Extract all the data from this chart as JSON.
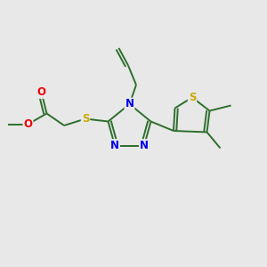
{
  "background_color": "#e8e8e8",
  "bond_color": "#2d6e2d",
  "atom_colors": {
    "N": "#0000ee",
    "O": "#ee0000",
    "S": "#ccaa00",
    "C": "#2d2d2d"
  },
  "figsize": [
    3.0,
    3.0
  ],
  "dpi": 100
}
